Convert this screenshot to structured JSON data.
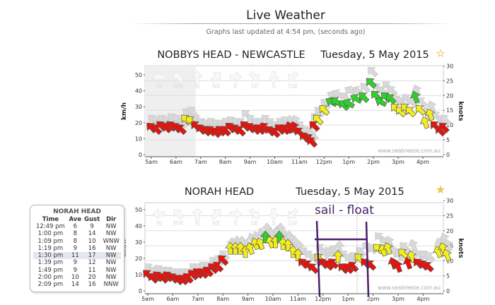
{
  "header": {
    "title": "Live Weather",
    "updated": "Graphs last updated at 4:54 pm, (seconds ago)"
  },
  "colors": {
    "red": "#e8120c",
    "yellow": "#f4ee1a",
    "green": "#2ed12a",
    "gust": "#d8d8d8",
    "annotation": "#4a1f6b"
  },
  "compass": [
    "W",
    "NW",
    "N",
    "NE",
    "E",
    "SE",
    "S",
    "SW"
  ],
  "watermark": "www.seabreeze.com.au",
  "charts": [
    {
      "title": "NOBBYS HEAD - NEWCASTLE",
      "date": "Tuesday, 5 May 2015",
      "favorite_icon": "star-outline-icon",
      "left_axis": {
        "label": "km/h",
        "ticks": [
          0,
          10,
          20,
          30,
          40,
          50
        ]
      },
      "right_axis": {
        "label": "knots",
        "ticks": [
          0,
          5,
          10,
          15,
          20,
          25,
          30
        ]
      },
      "x_ticks": [
        "5am",
        "6am",
        "7am",
        "8am",
        "9am",
        "10am",
        "11am",
        "12pm",
        "1pm",
        "2pm",
        "3pm",
        "4pm"
      ],
      "series": [
        [
          5.0,
          17,
          22,
          315
        ],
        [
          5.2,
          16,
          21,
          315
        ],
        [
          5.4,
          18,
          22,
          315
        ],
        [
          5.6,
          17,
          21,
          315
        ],
        [
          5.8,
          18,
          23,
          315
        ],
        [
          6.0,
          17,
          22,
          315
        ],
        [
          6.2,
          16,
          20,
          315
        ],
        [
          6.4,
          22,
          26,
          315
        ],
        [
          6.6,
          21,
          27,
          315
        ],
        [
          6.8,
          18,
          22,
          315
        ],
        [
          7.0,
          16,
          20,
          315
        ],
        [
          7.2,
          15,
          19,
          315
        ],
        [
          7.4,
          15,
          20,
          315
        ],
        [
          7.6,
          14,
          19,
          315
        ],
        [
          7.8,
          15,
          19,
          315
        ],
        [
          8.0,
          15,
          20,
          315
        ],
        [
          8.2,
          17,
          21,
          315
        ],
        [
          8.4,
          16,
          20,
          315
        ],
        [
          8.6,
          15,
          20,
          315
        ],
        [
          8.8,
          18,
          25,
          315
        ],
        [
          9.0,
          17,
          22,
          315
        ],
        [
          9.2,
          16,
          20,
          315
        ],
        [
          9.4,
          16,
          20,
          315
        ],
        [
          9.6,
          17,
          22,
          315
        ],
        [
          9.8,
          15,
          20,
          315
        ],
        [
          10.0,
          14,
          18,
          315
        ],
        [
          10.2,
          16,
          20,
          315
        ],
        [
          10.4,
          16,
          21,
          315
        ],
        [
          10.6,
          17,
          21,
          340
        ],
        [
          10.8,
          17,
          21,
          340
        ],
        [
          11.0,
          14,
          18,
          315
        ],
        [
          11.2,
          11,
          15,
          315
        ],
        [
          11.4,
          10,
          14,
          315
        ],
        [
          11.5,
          8,
          12,
          315
        ],
        [
          11.6,
          18,
          23,
          315
        ],
        [
          11.75,
          22,
          27,
          315
        ],
        [
          12.0,
          28,
          32,
          315
        ],
        [
          12.3,
          33,
          37,
          300
        ],
        [
          12.5,
          33,
          38,
          300
        ],
        [
          12.8,
          31,
          36,
          315
        ],
        [
          13.0,
          32,
          40,
          300
        ],
        [
          13.3,
          35,
          40,
          300
        ],
        [
          13.6,
          36,
          42,
          315
        ],
        [
          13.9,
          45,
          52,
          315
        ],
        [
          14.1,
          37,
          42,
          315
        ],
        [
          14.3,
          33,
          40,
          300
        ],
        [
          14.5,
          36,
          43,
          315
        ],
        [
          14.7,
          35,
          40,
          315
        ],
        [
          14.9,
          29,
          34,
          315
        ],
        [
          15.1,
          27,
          33,
          315
        ],
        [
          15.3,
          29,
          35,
          315
        ],
        [
          15.5,
          27,
          33,
          315
        ],
        [
          15.7,
          36,
          40,
          340
        ],
        [
          15.9,
          28,
          33,
          315
        ],
        [
          16.1,
          20,
          26,
          340
        ],
        [
          16.3,
          25,
          30,
          340
        ],
        [
          16.5,
          18,
          24,
          315
        ],
        [
          16.7,
          15,
          21,
          315
        ],
        [
          16.85,
          17,
          22,
          315
        ]
      ]
    },
    {
      "title": "NORAH HEAD",
      "date": "Tuesday, 5 May 2015",
      "favorite_icon": "star-filled-icon",
      "left_axis": {
        "label": "km/h",
        "ticks": [
          0,
          10,
          20,
          30,
          40,
          50
        ]
      },
      "right_axis": {
        "label": "knots",
        "ticks": [
          0,
          5,
          10,
          15,
          20,
          25,
          30
        ]
      },
      "x_ticks": [
        "5am",
        "6am",
        "7am",
        "8am",
        "9am",
        "10am",
        "11am",
        "12pm",
        "1pm",
        "2pm",
        "3pm",
        "4pm"
      ],
      "annotation": "sail - float",
      "series": [
        [
          5.0,
          10,
          14,
          315
        ],
        [
          5.2,
          8,
          12,
          315
        ],
        [
          5.4,
          9,
          13,
          315
        ],
        [
          5.6,
          8,
          12,
          315
        ],
        [
          5.8,
          9,
          12,
          315
        ],
        [
          6.0,
          8,
          11,
          315
        ],
        [
          6.2,
          7,
          11,
          315
        ],
        [
          6.4,
          7,
          11,
          315
        ],
        [
          6.6,
          8,
          11,
          315
        ],
        [
          6.8,
          10,
          14,
          315
        ],
        [
          7.0,
          11,
          14,
          315
        ],
        [
          7.2,
          11,
          15,
          315
        ],
        [
          7.4,
          12,
          15,
          315
        ],
        [
          7.6,
          14,
          18,
          315
        ],
        [
          7.8,
          15,
          19,
          315
        ],
        [
          8.0,
          19,
          22,
          315
        ],
        [
          8.3,
          26,
          29,
          0
        ],
        [
          8.5,
          26,
          30,
          0
        ],
        [
          8.7,
          26,
          30,
          0
        ],
        [
          8.9,
          24,
          28,
          0
        ],
        [
          9.1,
          26,
          32,
          340
        ],
        [
          9.3,
          29,
          33,
          340
        ],
        [
          9.5,
          29,
          35,
          340
        ],
        [
          9.7,
          33,
          38,
          0
        ],
        [
          9.9,
          30,
          35,
          340
        ],
        [
          10.1,
          30,
          36,
          0
        ],
        [
          10.25,
          33,
          38,
          0
        ],
        [
          10.4,
          29,
          34,
          0
        ],
        [
          10.6,
          28,
          33,
          0
        ],
        [
          10.8,
          24,
          30,
          0
        ],
        [
          11.0,
          22,
          27,
          0
        ],
        [
          11.2,
          17,
          24,
          315
        ],
        [
          11.4,
          16,
          22,
          315
        ],
        [
          11.6,
          14,
          20,
          315
        ],
        [
          11.85,
          20,
          26,
          315
        ],
        [
          12.0,
          17,
          23,
          315
        ],
        [
          12.2,
          16,
          24,
          315
        ],
        [
          12.4,
          17,
          25,
          315
        ],
        [
          12.6,
          21,
          27,
          0
        ],
        [
          12.8,
          14,
          22,
          315
        ],
        [
          13.0,
          14,
          20,
          315
        ],
        [
          13.2,
          15,
          21,
          315
        ],
        [
          13.45,
          20,
          24,
          315
        ],
        [
          13.7,
          17,
          27,
          315
        ],
        [
          13.9,
          16,
          26,
          315
        ],
        [
          14.2,
          26,
          33,
          315
        ],
        [
          14.4,
          25,
          30,
          340
        ],
        [
          14.6,
          26,
          30,
          340
        ],
        [
          14.8,
          17,
          24,
          340
        ],
        [
          15.0,
          15,
          22,
          340
        ],
        [
          15.2,
          23,
          27,
          315
        ],
        [
          15.4,
          17,
          23,
          340
        ],
        [
          15.55,
          21,
          28,
          340
        ],
        [
          15.8,
          17,
          22,
          315
        ],
        [
          16.0,
          16,
          22,
          315
        ],
        [
          16.2,
          15,
          21,
          315
        ],
        [
          16.6,
          24,
          29,
          340
        ],
        [
          16.8,
          26,
          32,
          340
        ],
        [
          16.95,
          22,
          28,
          340
        ]
      ]
    }
  ],
  "station_table": {
    "title": "NORAH HEAD",
    "columns": [
      "Time",
      "Ave",
      "Gust",
      "Dir"
    ],
    "rows": [
      [
        "12:49 pm",
        "6",
        "9",
        "NW"
      ],
      [
        "1:00 pm",
        "8",
        "14",
        "NW"
      ],
      [
        "1:09 pm",
        "8",
        "10",
        "WNW"
      ],
      [
        "1:19 pm",
        "9",
        "16",
        "NW"
      ],
      [
        "1:30 pm",
        "11",
        "17",
        "NW"
      ],
      [
        "1:39 pm",
        "9",
        "12",
        "NW"
      ],
      [
        "1:49 pm",
        "9",
        "11",
        "NW"
      ],
      [
        "2:00 pm",
        "10",
        "20",
        "NW"
      ],
      [
        "2:09 pm",
        "14",
        "16",
        "NNW"
      ]
    ],
    "highlighted_row": 4
  }
}
